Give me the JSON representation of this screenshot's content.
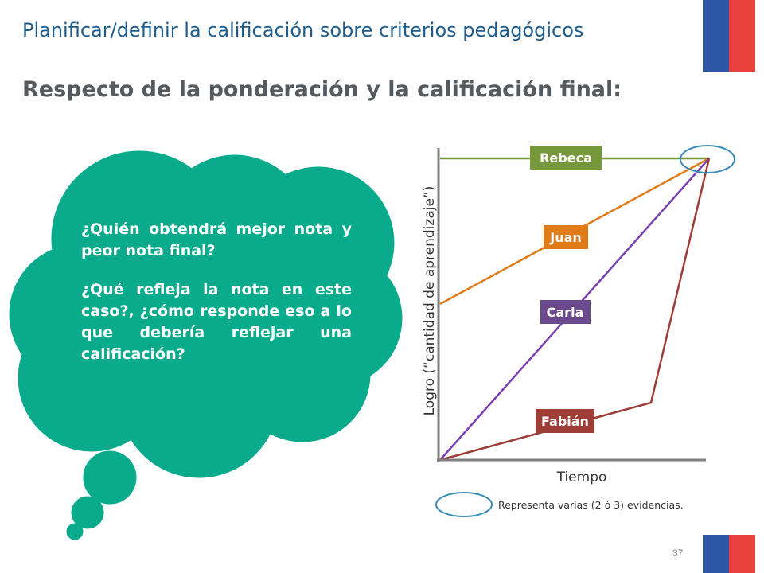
{
  "header": {
    "title": "Planificar/definir la calificación sobre criterios pedagógicos",
    "subtitle": "Respecto de la ponderación y la calificación final:"
  },
  "bubble": {
    "question_1": "¿Quién obtendrá mejor nota y peor nota final?",
    "question_2": "¿Qué refleja la nota en este caso?, ¿cómo responde eso a lo que debería reflejar una calificación?",
    "color": "#0aab8c"
  },
  "diagram": {
    "y_axis_label": "Logro (“cantidad de aprendizaje”)",
    "x_axis_label": "Tiempo",
    "legend_text": "Representa varias (2 ó 3) evidencias.",
    "students": [
      {
        "name": "Rebeca",
        "color": "#76983a"
      },
      {
        "name": "Juan",
        "color": "#e07b1a"
      },
      {
        "name": "Carla",
        "color": "#6a4a8c"
      },
      {
        "name": "Fabián",
        "color": "#9e3c36"
      }
    ],
    "highlight_color": "#3b8bb8"
  },
  "footer": {
    "slide_number": "37"
  }
}
